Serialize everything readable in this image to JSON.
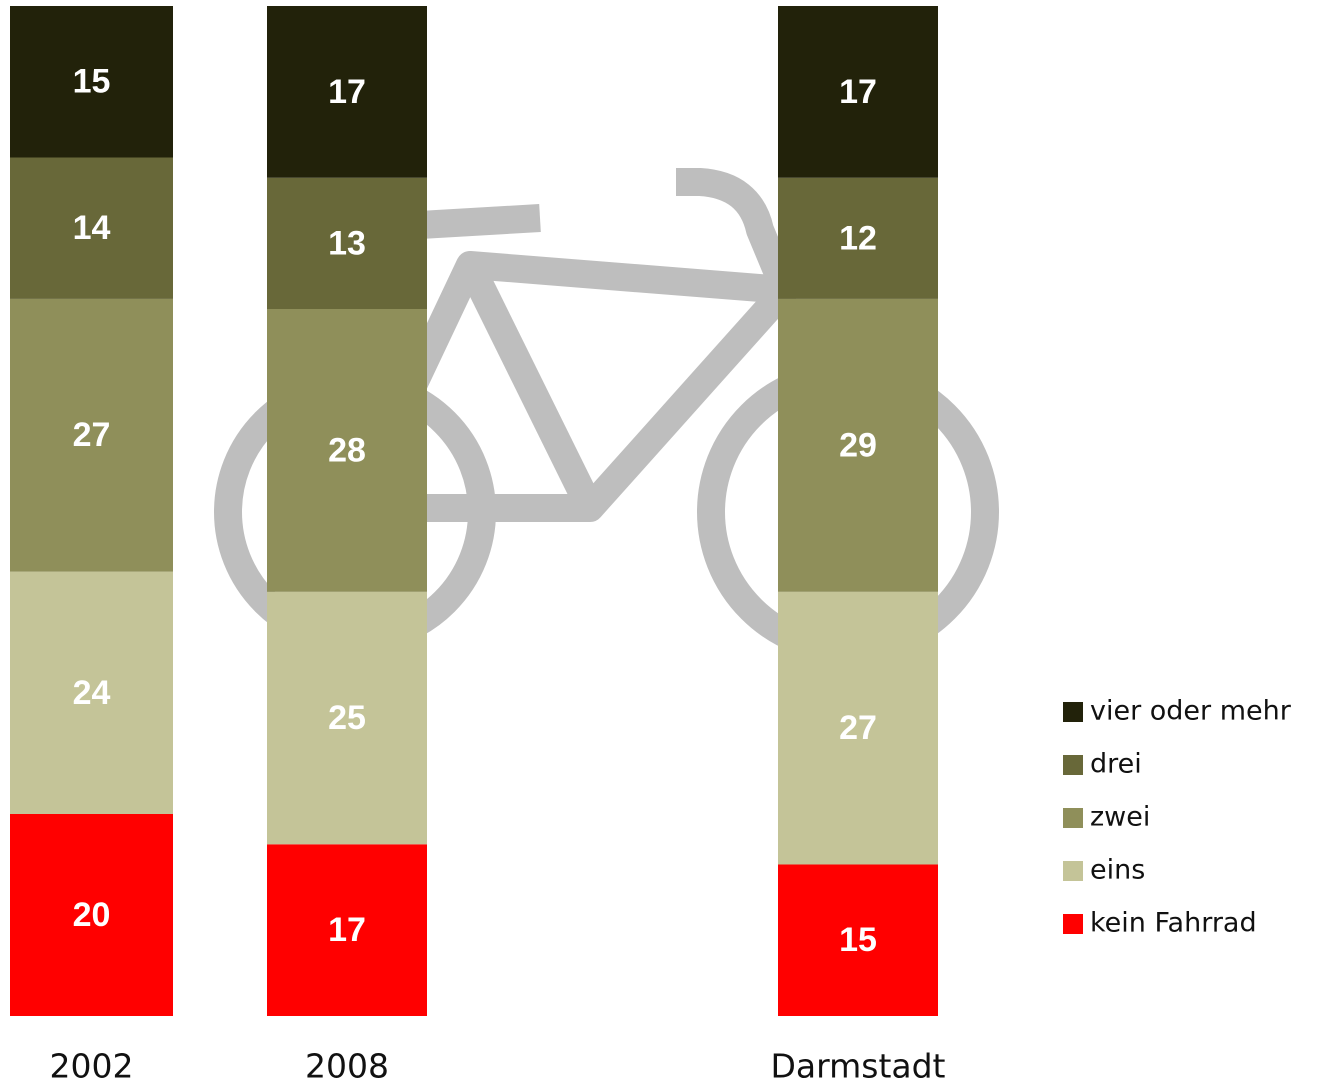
{
  "chart_data": {
    "type": "stacked-bar",
    "categories": [
      "2002",
      "2008",
      "Darmstadt"
    ],
    "ylim": [
      0,
      100
    ],
    "series": [
      {
        "name": "kein Fahrrad",
        "color": "#ff0000",
        "values": [
          20,
          17,
          15
        ]
      },
      {
        "name": "eins",
        "color": "#c4c498",
        "values": [
          24,
          25,
          27
        ]
      },
      {
        "name": "zwei",
        "color": "#8f8f5a",
        "values": [
          27,
          28,
          29
        ]
      },
      {
        "name": "drei",
        "color": "#686839",
        "values": [
          14,
          13,
          12
        ]
      },
      {
        "name": "vier oder mehr",
        "color": "#22220a",
        "values": [
          15,
          17,
          17
        ]
      }
    ]
  }
}
